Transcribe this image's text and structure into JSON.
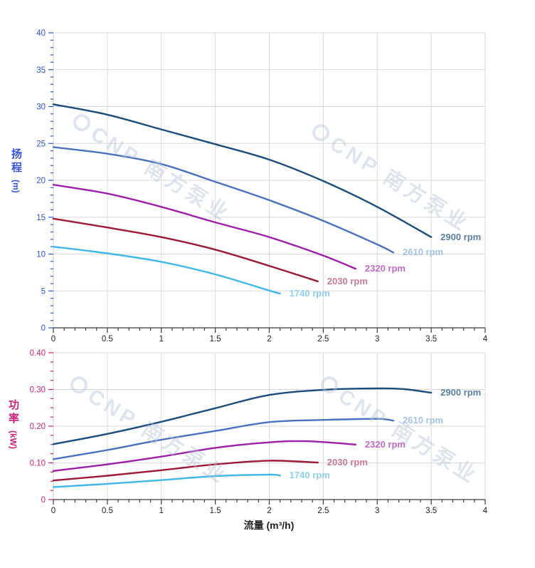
{
  "page": {
    "background": "#ffffff"
  },
  "watermark": {
    "text": "CNP 南方泵业"
  },
  "axes": {
    "x_title": "流量 (m³/h)",
    "colors": {
      "head_axis": "#3354d9",
      "power_axis": "#d01f7a",
      "x_labels": "#222222",
      "grid": "#dadada",
      "frame": "#c9cfda",
      "baseline": "#3a3a3a"
    }
  },
  "chart_data": [
    {
      "type": "line",
      "title": "",
      "xlabel": "流量 (m³/h)",
      "ylabel": "扬程 (m)",
      "ylabel_cn": "扬程",
      "ylabel_unit": "(m)",
      "xlim": [
        0,
        4
      ],
      "ylim": [
        0,
        40
      ],
      "xticks": [
        0,
        0.5,
        1,
        1.5,
        2,
        2.5,
        3,
        3.5,
        4
      ],
      "xtick_labels": [
        "0",
        "0.5",
        "1",
        "1.5",
        "2",
        "2.5",
        "3",
        "3.5",
        "4"
      ],
      "yticks": [
        0,
        5,
        10,
        15,
        20,
        25,
        30,
        35,
        40
      ],
      "ytick_labels": [
        "0",
        "5",
        "10",
        "15",
        "20",
        "25",
        "30",
        "35",
        "40"
      ],
      "x_minor_step": 0.1,
      "y_minor_step": 1,
      "grid": true,
      "legend": "labels-at-line-ends",
      "series": [
        {
          "name": "2900 rpm",
          "color": "#1b4e7e",
          "label_color": "#5b80a8",
          "points": [
            [
              0,
              30.3
            ],
            [
              0.5,
              28.9
            ],
            [
              1,
              26.9
            ],
            [
              1.5,
              24.9
            ],
            [
              2,
              22.8
            ],
            [
              2.5,
              19.9
            ],
            [
              3,
              16.4
            ],
            [
              3.5,
              12.3
            ]
          ]
        },
        {
          "name": "2610 rpm",
          "color": "#4a72c0",
          "label_color": "#a5c2e6",
          "points": [
            [
              0,
              24.5
            ],
            [
              0.5,
              23.6
            ],
            [
              1,
              22.2
            ],
            [
              1.5,
              19.8
            ],
            [
              2,
              17.3
            ],
            [
              2.5,
              14.5
            ],
            [
              3,
              11.3
            ],
            [
              3.15,
              10.2
            ]
          ]
        },
        {
          "name": "2320 rpm",
          "color": "#9e1fa8",
          "label_color": "#c06cc8",
          "points": [
            [
              0,
              19.4
            ],
            [
              0.5,
              18.2
            ],
            [
              1,
              16.4
            ],
            [
              1.5,
              14.3
            ],
            [
              2,
              12.3
            ],
            [
              2.5,
              9.8
            ],
            [
              2.8,
              8.0
            ]
          ]
        },
        {
          "name": "2030 rpm",
          "color": "#9e1b38",
          "label_color": "#c77b93",
          "points": [
            [
              0,
              14.8
            ],
            [
              0.5,
              13.6
            ],
            [
              1,
              12.3
            ],
            [
              1.5,
              10.6
            ],
            [
              2,
              8.4
            ],
            [
              2.45,
              6.3
            ]
          ]
        },
        {
          "name": "1740 rpm",
          "color": "#41b8e8",
          "label_color": "#8fd0f0",
          "points": [
            [
              0,
              11.0
            ],
            [
              0.5,
              10.1
            ],
            [
              1,
              8.95
            ],
            [
              1.5,
              7.25
            ],
            [
              2,
              5.05
            ],
            [
              2.1,
              4.65
            ]
          ]
        }
      ]
    },
    {
      "type": "line",
      "title": "",
      "xlabel": "流量 (m³/h)",
      "ylabel": "功率 (kW)",
      "ylabel_cn": "功率",
      "ylabel_unit": "(kW)",
      "xlim": [
        0,
        4
      ],
      "ylim": [
        0,
        0.4
      ],
      "xticks": [
        0,
        0.5,
        1,
        1.5,
        2,
        2.5,
        3,
        3.5,
        4
      ],
      "xtick_labels": [
        "0",
        "0.5",
        "1",
        "1.5",
        "2",
        "2.5",
        "3",
        "3.5",
        "4"
      ],
      "yticks": [
        0,
        0.1,
        0.2,
        0.3,
        0.4
      ],
      "ytick_labels": [
        "0",
        "0.10",
        "0.20",
        "0.30",
        "0.40"
      ],
      "x_minor_step": 0.1,
      "y_minor_step": 0.025,
      "grid": true,
      "legend": "labels-at-line-ends",
      "series": [
        {
          "name": "2900 rpm",
          "color": "#1b4e7e",
          "label_color": "#5b80a8",
          "points": [
            [
              0,
              0.151
            ],
            [
              0.5,
              0.179
            ],
            [
              1,
              0.212
            ],
            [
              1.5,
              0.249
            ],
            [
              2,
              0.285
            ],
            [
              2.5,
              0.299
            ],
            [
              3,
              0.303
            ],
            [
              3.25,
              0.301
            ],
            [
              3.5,
              0.291
            ]
          ]
        },
        {
          "name": "2610 rpm",
          "color": "#4a72c0",
          "label_color": "#a5c2e6",
          "points": [
            [
              0,
              0.11
            ],
            [
              0.5,
              0.135
            ],
            [
              1,
              0.163
            ],
            [
              1.5,
              0.187
            ],
            [
              2,
              0.211
            ],
            [
              2.5,
              0.217
            ],
            [
              3,
              0.22
            ],
            [
              3.15,
              0.215
            ]
          ]
        },
        {
          "name": "2320 rpm",
          "color": "#9e1fa8",
          "label_color": "#c06cc8",
          "points": [
            [
              0,
              0.078
            ],
            [
              0.5,
              0.096
            ],
            [
              1,
              0.117
            ],
            [
              1.5,
              0.141
            ],
            [
              2,
              0.156
            ],
            [
              2.35,
              0.159
            ],
            [
              2.8,
              0.15
            ]
          ]
        },
        {
          "name": "2030 rpm",
          "color": "#9e1b38",
          "label_color": "#c77b93",
          "points": [
            [
              0,
              0.052
            ],
            [
              0.5,
              0.065
            ],
            [
              1,
              0.08
            ],
            [
              1.5,
              0.096
            ],
            [
              2,
              0.106
            ],
            [
              2.45,
              0.101
            ]
          ]
        },
        {
          "name": "1740 rpm",
          "color": "#41b8e8",
          "label_color": "#8fd0f0",
          "points": [
            [
              0,
              0.034
            ],
            [
              0.5,
              0.043
            ],
            [
              1,
              0.053
            ],
            [
              1.5,
              0.064
            ],
            [
              2,
              0.068
            ],
            [
              2.1,
              0.0655
            ]
          ]
        }
      ]
    }
  ]
}
